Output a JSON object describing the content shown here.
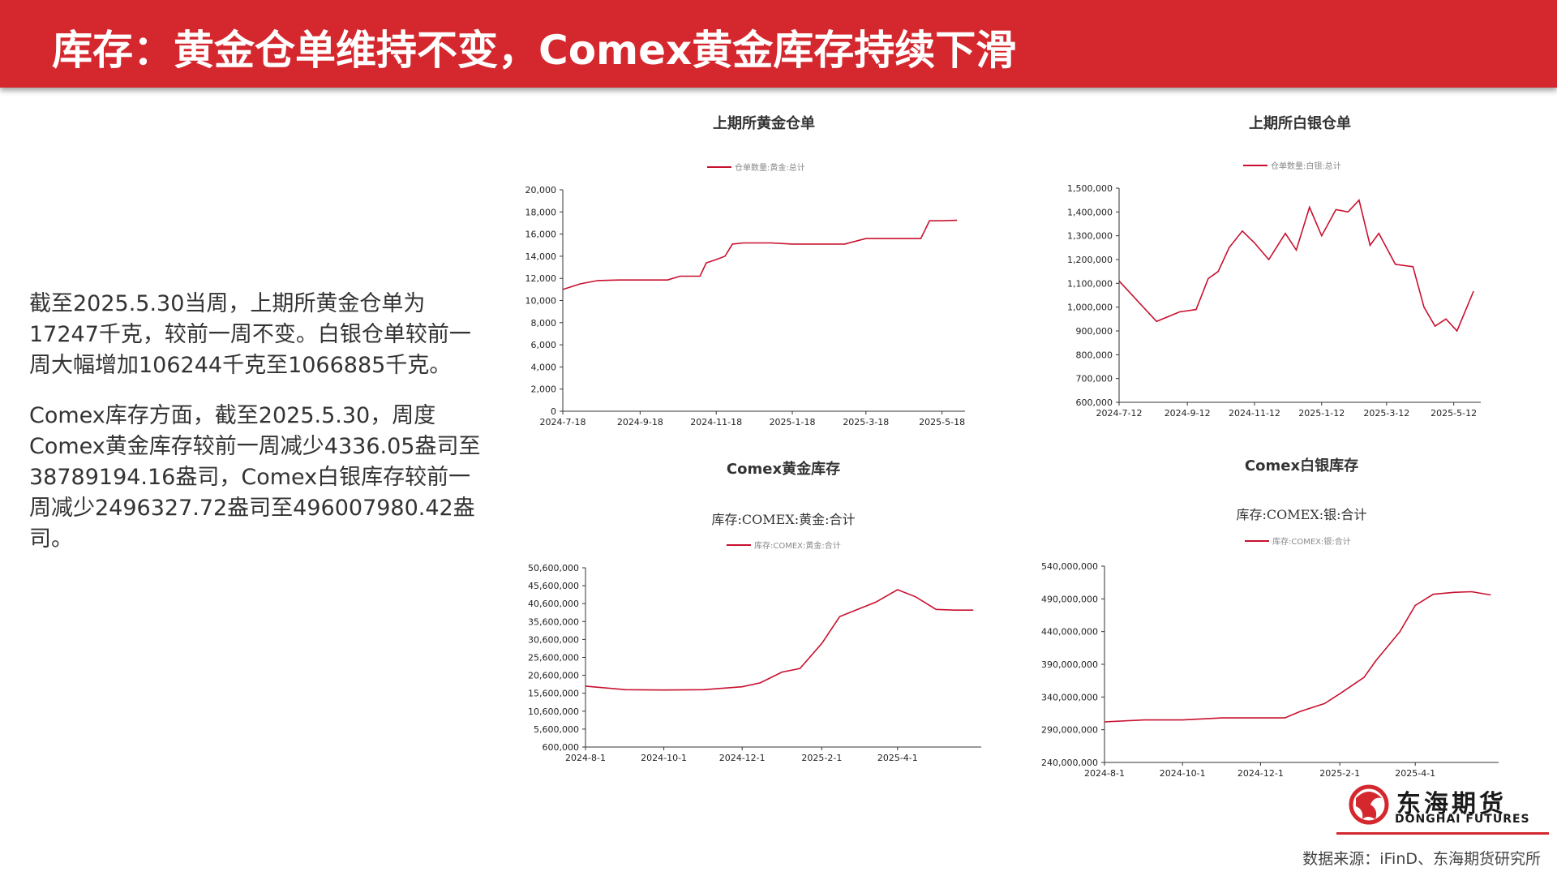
{
  "header": {
    "title": "库存：黄金仓单维持不变，Comex黄金库存持续下滑"
  },
  "text": {
    "p1": "截至2025.5.30当周，上期所黄金仓单为17247千克，较前一周不变。白银仓单较前一周大幅增加106244千克至1066885千克。",
    "p2": "Comex库存方面，截至2025.5.30，周度Comex黄金库存较前一周减少4336.05盎司至38789194.16盎司，Comex白银库存较前一周减少2496327.72盎司至496007980.42盎司。"
  },
  "source": "数据来源：iFinD、东海期货研究所",
  "logo": {
    "cn": "东海期货",
    "en": "DONGHAI FUTURES"
  },
  "colors": {
    "accent": "#d4282e",
    "line": "#c8102e"
  },
  "chart_data": [
    {
      "type": "line",
      "title": "上期所黄金仓单",
      "subtitle": "",
      "series": [
        {
          "name": "仓单数量:黄金:总计",
          "x": [
            "2024-7-18",
            "2024-8-1",
            "2024-8-15",
            "2024-9-1",
            "2024-9-18",
            "2024-10-1",
            "2024-10-10",
            "2024-10-20",
            "2024-11-1",
            "2024-11-5",
            "2024-11-10",
            "2024-11-18",
            "2024-11-25",
            "2024-12-1",
            "2024-12-10",
            "2024-12-20",
            "2025-1-1",
            "2025-1-18",
            "2025-2-1",
            "2025-2-18",
            "2025-3-1",
            "2025-3-18",
            "2025-4-1",
            "2025-4-18",
            "2025-5-1",
            "2025-5-8",
            "2025-5-18",
            "2025-5-30"
          ],
          "values": [
            11000,
            11500,
            11800,
            11850,
            11850,
            11850,
            11850,
            12200,
            12200,
            12200,
            13400,
            13700,
            14000,
            15100,
            15200,
            15200,
            15200,
            15100,
            15100,
            15100,
            15100,
            15600,
            15600,
            15600,
            15600,
            17200,
            17200,
            17247
          ]
        }
      ],
      "xticks": [
        "2024-7-18",
        "2024-9-18",
        "2024-11-18",
        "2025-1-18",
        "2025-3-18",
        "2025-5-18"
      ],
      "yticks": [
        "0",
        "2,000",
        "4,000",
        "6,000",
        "8,000",
        "10,000",
        "12,000",
        "14,000",
        "16,000",
        "18,000",
        "20,000"
      ],
      "ylim": [
        0,
        20000
      ]
    },
    {
      "type": "line",
      "title": "上期所白银仓单",
      "subtitle": "",
      "series": [
        {
          "name": "仓单数量:白银:总计",
          "x": [
            "2024-7-12",
            "2024-8-15",
            "2024-9-5",
            "2024-9-20",
            "2024-10-1",
            "2024-10-10",
            "2024-10-20",
            "2024-11-1",
            "2024-11-12",
            "2024-11-25",
            "2024-12-10",
            "2024-12-20",
            "2025-1-1",
            "2025-1-12",
            "2025-1-25",
            "2025-2-5",
            "2025-2-15",
            "2025-2-25",
            "2025-3-5",
            "2025-3-20",
            "2025-4-5",
            "2025-4-15",
            "2025-4-25",
            "2025-5-5",
            "2025-5-15",
            "2025-5-30"
          ],
          "values": [
            1110000,
            940000,
            980000,
            990000,
            1120000,
            1150000,
            1250000,
            1320000,
            1270000,
            1200000,
            1310000,
            1240000,
            1420000,
            1300000,
            1410000,
            1400000,
            1450000,
            1260000,
            1310000,
            1180000,
            1170000,
            1000000,
            920000,
            950000,
            900000,
            1066885
          ]
        }
      ],
      "xticks": [
        "2024-7-12",
        "2024-9-12",
        "2024-11-12",
        "2025-1-12",
        "2025-3-12",
        "2025-5-12"
      ],
      "yticks": [
        "600,000",
        "700,000",
        "800,000",
        "900,000",
        "1,000,000",
        "1,100,000",
        "1,200,000",
        "1,300,000",
        "1,400,000",
        "1,500,000"
      ],
      "ylim": [
        600000,
        1500000
      ]
    },
    {
      "type": "line",
      "title": "Comex黄金库存",
      "subtitle": "库存:COMEX:黄金:合计",
      "series": [
        {
          "name": "库存:COMEX:黄金:合计",
          "x": [
            "2024-8-1",
            "2024-9-1",
            "2024-10-1",
            "2024-11-1",
            "2024-12-1",
            "2024-12-15",
            "2025-1-1",
            "2025-1-15",
            "2025-2-1",
            "2025-2-15",
            "2025-3-1",
            "2025-3-15",
            "2025-4-1",
            "2025-4-15",
            "2025-5-1",
            "2025-5-15",
            "2025-5-30"
          ],
          "values": [
            17600000,
            16600000,
            16500000,
            16600000,
            17400000,
            18500000,
            21500000,
            22500000,
            29500000,
            37000000,
            39000000,
            41000000,
            44500000,
            42500000,
            39000000,
            38800000,
            38789194
          ]
        }
      ],
      "xticks": [
        "2024-8-1",
        "2024-10-1",
        "2024-12-1",
        "2025-2-1",
        "2025-4-1"
      ],
      "yticks": [
        "600,000",
        "5,600,000",
        "10,600,000",
        "15,600,000",
        "20,600,000",
        "25,600,000",
        "30,600,000",
        "35,600,000",
        "40,600,000",
        "45,600,000",
        "50,600,000"
      ],
      "ylim": [
        600000,
        50600000
      ]
    },
    {
      "type": "line",
      "title": "Comex白银库存",
      "subtitle": "库存:COMEX:银:合计",
      "series": [
        {
          "name": "库存:COMEX:银:合计",
          "x": [
            "2024-8-1",
            "2024-9-1",
            "2024-10-1",
            "2024-11-1",
            "2024-12-1",
            "2024-12-20",
            "2025-1-1",
            "2025-1-20",
            "2025-2-1",
            "2025-2-20",
            "2025-3-1",
            "2025-3-20",
            "2025-4-1",
            "2025-4-15",
            "2025-5-1",
            "2025-5-15",
            "2025-5-30"
          ],
          "values": [
            302000000,
            305000000,
            305000000,
            308000000,
            308000000,
            308000000,
            318000000,
            330000000,
            345000000,
            370000000,
            395000000,
            440000000,
            480000000,
            497000000,
            500000000,
            501000000,
            496007980
          ]
        }
      ],
      "xticks": [
        "2024-8-1",
        "2024-10-1",
        "2024-12-1",
        "2025-2-1",
        "2025-4-1"
      ],
      "yticks": [
        "240,000,000",
        "290,000,000",
        "340,000,000",
        "390,000,000",
        "440,000,000",
        "490,000,000",
        "540,000,000"
      ],
      "ylim": [
        240000000,
        540000000
      ]
    }
  ]
}
